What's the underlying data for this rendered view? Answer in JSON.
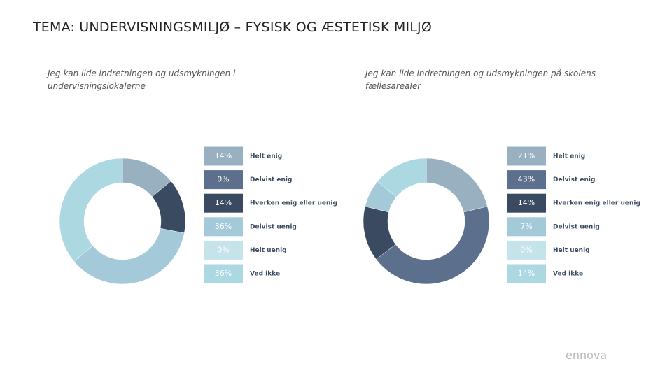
{
  "title": "TEMA: UNDERVISNINGSMILJØ – FYSISK OG ÆSTETISK MILJØ",
  "logo": "ennova",
  "chart_data": [
    {
      "type": "pie",
      "donut": true,
      "title": "Jeg kan lide indretningen og udsmykningen i undervisningslokalerne",
      "categories": [
        "Helt enig",
        "Delvist enig",
        "Hverken enig eller uenig",
        "Delvist uenig",
        "Helt uenig",
        "Ved ikke"
      ],
      "values": [
        14,
        0,
        14,
        36,
        0,
        36
      ],
      "value_labels": [
        "14%",
        "0%",
        "14%",
        "36%",
        "0%",
        "36%"
      ],
      "colors": [
        "#98b0bf",
        "#5c6f8c",
        "#3a4a60",
        "#a4cad9",
        "#c5e3ea",
        "#acd8e2"
      ]
    },
    {
      "type": "pie",
      "donut": true,
      "title": "Jeg kan lide indretningen og udsmykningen på skolens fællesarealer",
      "categories": [
        "Helt enig",
        "Delvist enig",
        "Hverken enig eller uenig",
        "Delvist uenig",
        "Helt uenig",
        "Ved ikke"
      ],
      "values": [
        21,
        43,
        14,
        7,
        0,
        14
      ],
      "value_labels": [
        "21%",
        "43%",
        "14%",
        "7%",
        "0%",
        "14%"
      ],
      "colors": [
        "#98b0bf",
        "#5c6f8c",
        "#3a4a60",
        "#a4cad9",
        "#c5e3ea",
        "#acd8e2"
      ]
    }
  ]
}
